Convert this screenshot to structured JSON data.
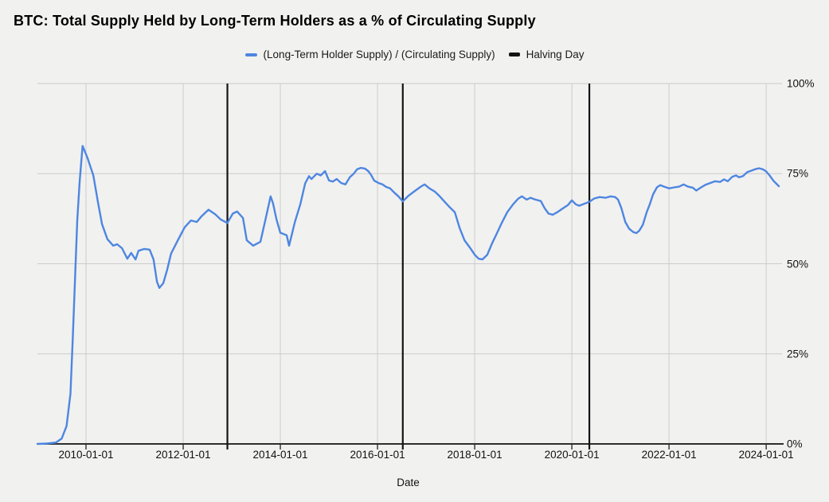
{
  "title": "BTC: Total Supply Held by Long-Term Holders as a % of Circulating Supply",
  "legend": {
    "series_label": "(Long-Term Holder Supply) / (Circulating Supply)",
    "halving_label": "Halving Day"
  },
  "x_axis": {
    "label": "Date",
    "tick_labels": [
      "2010-01-01",
      "2012-01-01",
      "2014-01-01",
      "2016-01-01",
      "2018-01-01",
      "2020-01-01",
      "2022-01-01",
      "2024-01-01"
    ]
  },
  "y_axis": {
    "tick_labels": [
      "0%",
      "25%",
      "50%",
      "75%",
      "100%"
    ]
  },
  "colors": {
    "background": "#f1f1f0",
    "series": "#4e86e0",
    "halving": "#141414",
    "grid": "#cccccc",
    "axis": "#2e2e2e",
    "text": "#111111"
  },
  "chart_data": {
    "type": "line",
    "title": "BTC: Total Supply Held by Long-Term Holders as a % of Circulating Supply",
    "xlabel": "Date",
    "ylabel": "",
    "xlim": [
      2009.0,
      2024.26
    ],
    "ylim": [
      0,
      100
    ],
    "grid": true,
    "legend_position": "top",
    "x_ticks": [
      2010,
      2012,
      2014,
      2016,
      2018,
      2020,
      2022,
      2024
    ],
    "x_tick_labels": [
      "2010-01-01",
      "2012-01-01",
      "2014-01-01",
      "2016-01-01",
      "2018-01-01",
      "2020-01-01",
      "2022-01-01",
      "2024-01-01"
    ],
    "y_ticks": [
      0,
      25,
      50,
      75,
      100
    ],
    "y_tick_labels": [
      "0%",
      "25%",
      "50%",
      "75%",
      "100%"
    ],
    "halving_days": {
      "name": "Halving Day",
      "color": "#141414",
      "dates": [
        "2012-11-28",
        "2016-07-09",
        "2020-05-11"
      ],
      "x_values": [
        2012.91,
        2016.52,
        2020.36
      ]
    },
    "series": [
      {
        "name": "(Long-Term Holder Supply) / (Circulating Supply)",
        "color": "#4e86e0",
        "unit": "%",
        "points": [
          [
            2009.0,
            0.0
          ],
          [
            2009.2,
            0.1
          ],
          [
            2009.38,
            0.4
          ],
          [
            2009.5,
            1.5
          ],
          [
            2009.6,
            5.0
          ],
          [
            2009.68,
            14.0
          ],
          [
            2009.73,
            30.0
          ],
          [
            2009.78,
            48.0
          ],
          [
            2009.82,
            62.0
          ],
          [
            2009.87,
            73.0
          ],
          [
            2009.93,
            82.7
          ],
          [
            2010.03,
            79.4
          ],
          [
            2010.15,
            74.5
          ],
          [
            2010.25,
            66.7
          ],
          [
            2010.33,
            61.0
          ],
          [
            2010.44,
            56.8
          ],
          [
            2010.56,
            55.0
          ],
          [
            2010.64,
            55.4
          ],
          [
            2010.74,
            54.3
          ],
          [
            2010.85,
            51.4
          ],
          [
            2010.93,
            53.0
          ],
          [
            2011.02,
            51.2
          ],
          [
            2011.08,
            53.6
          ],
          [
            2011.2,
            54.1
          ],
          [
            2011.31,
            53.9
          ],
          [
            2011.39,
            51.2
          ],
          [
            2011.46,
            45.0
          ],
          [
            2011.51,
            43.3
          ],
          [
            2011.59,
            44.6
          ],
          [
            2011.67,
            48.3
          ],
          [
            2011.75,
            52.8
          ],
          [
            2011.89,
            56.5
          ],
          [
            2012.03,
            60.1
          ],
          [
            2012.16,
            62.0
          ],
          [
            2012.28,
            61.6
          ],
          [
            2012.38,
            63.2
          ],
          [
            2012.52,
            65.0
          ],
          [
            2012.66,
            63.7
          ],
          [
            2012.77,
            62.3
          ],
          [
            2012.91,
            61.3
          ],
          [
            2013.02,
            63.9
          ],
          [
            2013.11,
            64.5
          ],
          [
            2013.23,
            62.7
          ],
          [
            2013.31,
            56.5
          ],
          [
            2013.44,
            55.0
          ],
          [
            2013.59,
            56.1
          ],
          [
            2013.69,
            62.0
          ],
          [
            2013.8,
            68.7
          ],
          [
            2013.85,
            66.7
          ],
          [
            2013.92,
            62.3
          ],
          [
            2014.0,
            58.6
          ],
          [
            2014.13,
            57.9
          ],
          [
            2014.18,
            55.0
          ],
          [
            2014.3,
            61.6
          ],
          [
            2014.41,
            66.5
          ],
          [
            2014.51,
            72.3
          ],
          [
            2014.59,
            74.3
          ],
          [
            2014.64,
            73.5
          ],
          [
            2014.75,
            75.0
          ],
          [
            2014.83,
            74.5
          ],
          [
            2014.92,
            75.7
          ],
          [
            2015.0,
            73.1
          ],
          [
            2015.08,
            72.8
          ],
          [
            2015.16,
            73.5
          ],
          [
            2015.25,
            72.4
          ],
          [
            2015.34,
            72.0
          ],
          [
            2015.43,
            74.0
          ],
          [
            2015.51,
            75.0
          ],
          [
            2015.58,
            76.2
          ],
          [
            2015.66,
            76.6
          ],
          [
            2015.74,
            76.4
          ],
          [
            2015.81,
            75.7
          ],
          [
            2015.87,
            74.6
          ],
          [
            2015.93,
            73.1
          ],
          [
            2016.02,
            72.4
          ],
          [
            2016.1,
            72.0
          ],
          [
            2016.18,
            71.3
          ],
          [
            2016.26,
            70.9
          ],
          [
            2016.34,
            69.8
          ],
          [
            2016.43,
            68.7
          ],
          [
            2016.52,
            67.3
          ],
          [
            2016.64,
            68.9
          ],
          [
            2016.77,
            70.2
          ],
          [
            2016.89,
            71.4
          ],
          [
            2016.97,
            72.0
          ],
          [
            2017.07,
            70.9
          ],
          [
            2017.18,
            70.0
          ],
          [
            2017.28,
            68.7
          ],
          [
            2017.38,
            67.2
          ],
          [
            2017.49,
            65.6
          ],
          [
            2017.59,
            64.3
          ],
          [
            2017.69,
            59.9
          ],
          [
            2017.79,
            56.5
          ],
          [
            2017.9,
            54.5
          ],
          [
            2018.0,
            52.5
          ],
          [
            2018.08,
            51.4
          ],
          [
            2018.16,
            51.2
          ],
          [
            2018.26,
            52.5
          ],
          [
            2018.36,
            55.7
          ],
          [
            2018.46,
            58.5
          ],
          [
            2018.56,
            61.4
          ],
          [
            2018.67,
            64.3
          ],
          [
            2018.79,
            66.5
          ],
          [
            2018.89,
            68.0
          ],
          [
            2018.97,
            68.7
          ],
          [
            2019.07,
            67.8
          ],
          [
            2019.15,
            68.3
          ],
          [
            2019.25,
            67.8
          ],
          [
            2019.36,
            67.4
          ],
          [
            2019.44,
            65.4
          ],
          [
            2019.52,
            63.9
          ],
          [
            2019.61,
            63.6
          ],
          [
            2019.7,
            64.3
          ],
          [
            2019.82,
            65.4
          ],
          [
            2019.92,
            66.3
          ],
          [
            2020.0,
            67.6
          ],
          [
            2020.08,
            66.5
          ],
          [
            2020.15,
            66.1
          ],
          [
            2020.23,
            66.5
          ],
          [
            2020.36,
            67.2
          ],
          [
            2020.46,
            68.1
          ],
          [
            2020.57,
            68.5
          ],
          [
            2020.69,
            68.3
          ],
          [
            2020.8,
            68.7
          ],
          [
            2020.89,
            68.5
          ],
          [
            2020.95,
            67.8
          ],
          [
            2021.02,
            65.4
          ],
          [
            2021.1,
            61.6
          ],
          [
            2021.18,
            59.7
          ],
          [
            2021.26,
            58.8
          ],
          [
            2021.33,
            58.5
          ],
          [
            2021.39,
            59.2
          ],
          [
            2021.46,
            60.8
          ],
          [
            2021.54,
            64.3
          ],
          [
            2021.61,
            66.7
          ],
          [
            2021.67,
            69.2
          ],
          [
            2021.75,
            71.2
          ],
          [
            2021.82,
            71.8
          ],
          [
            2021.9,
            71.4
          ],
          [
            2022.0,
            70.9
          ],
          [
            2022.11,
            71.2
          ],
          [
            2022.21,
            71.4
          ],
          [
            2022.3,
            72.0
          ],
          [
            2022.39,
            71.4
          ],
          [
            2022.49,
            71.1
          ],
          [
            2022.56,
            70.3
          ],
          [
            2022.66,
            71.2
          ],
          [
            2022.75,
            71.9
          ],
          [
            2022.85,
            72.4
          ],
          [
            2022.95,
            72.9
          ],
          [
            2023.05,
            72.7
          ],
          [
            2023.13,
            73.4
          ],
          [
            2023.21,
            72.9
          ],
          [
            2023.3,
            74.1
          ],
          [
            2023.38,
            74.5
          ],
          [
            2023.44,
            74.0
          ],
          [
            2023.52,
            74.3
          ],
          [
            2023.61,
            75.4
          ],
          [
            2023.69,
            75.8
          ],
          [
            2023.77,
            76.2
          ],
          [
            2023.85,
            76.5
          ],
          [
            2023.93,
            76.2
          ],
          [
            2024.0,
            75.6
          ],
          [
            2024.07,
            74.5
          ],
          [
            2024.15,
            73.0
          ],
          [
            2024.21,
            72.2
          ],
          [
            2024.26,
            71.5
          ]
        ]
      }
    ]
  }
}
